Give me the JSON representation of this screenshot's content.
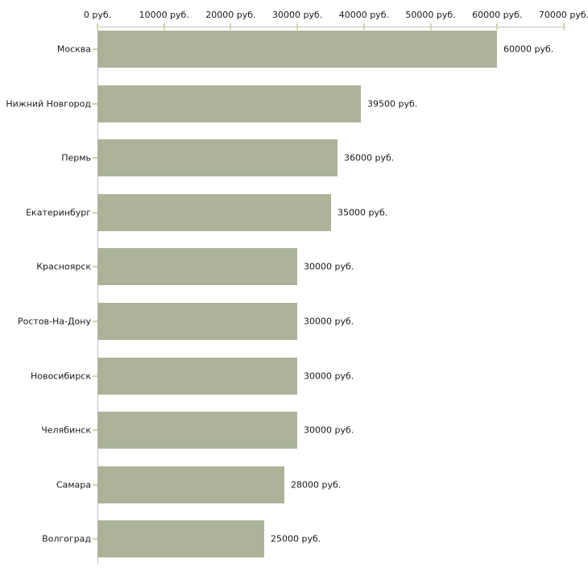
{
  "chart_data": {
    "type": "bar",
    "orientation": "horizontal",
    "title": "",
    "xlabel": "",
    "ylabel": "",
    "xlim": [
      0,
      70000
    ],
    "grid": false,
    "categories": [
      "Москва",
      "Нижний Новгород",
      "Пермь",
      "Екатеринбург",
      "Красноярск",
      "Ростов-На-Дону",
      "Новосибирск",
      "Челябинск",
      "Самара",
      "Волгоград"
    ],
    "values": [
      60000,
      39500,
      36000,
      35000,
      30000,
      30000,
      30000,
      30000,
      28000,
      25000
    ],
    "value_labels": [
      "60000 руб.",
      "39500 руб.",
      "36000 руб.",
      "35000 руб.",
      "30000 руб.",
      "30000 руб.",
      "30000 руб.",
      "30000 руб.",
      "28000 руб.",
      "25000 руб."
    ],
    "x_ticks": [
      0,
      10000,
      20000,
      30000,
      40000,
      50000,
      60000,
      70000
    ],
    "x_tick_labels": [
      "0 руб.",
      "10000 руб.",
      "20000 руб.",
      "30000 руб.",
      "40000 руб.",
      "50000 руб.",
      "60000 руб.",
      "70000 руб."
    ],
    "colors": {
      "bar": "#acb399",
      "axis": "#c0c0c0",
      "tick": "#d2d2a6",
      "text": "#1a1a1a",
      "background": "#ffffff"
    }
  }
}
